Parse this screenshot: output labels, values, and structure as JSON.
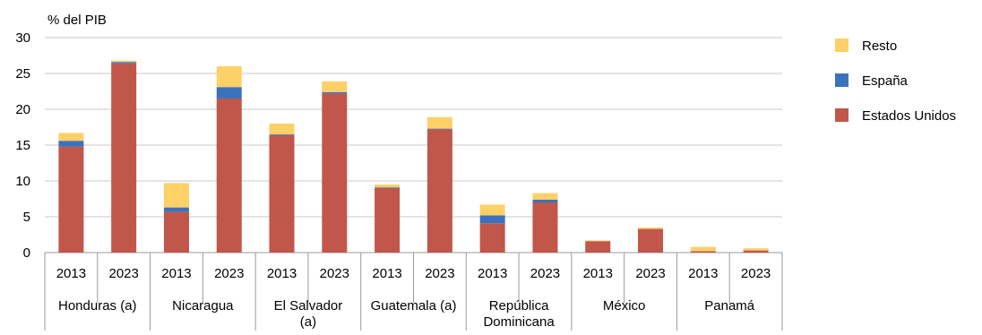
{
  "chart_data": {
    "type": "bar",
    "stacked": true,
    "ylabel": "% del PIB",
    "ylim": [
      0,
      30
    ],
    "yticks": [
      0,
      5,
      10,
      15,
      20,
      25,
      30
    ],
    "grid": true,
    "legend_position": "right",
    "groups": [
      {
        "label": "Honduras (a)",
        "label_lines": [
          "Honduras (a)"
        ]
      },
      {
        "label": "Nicaragua",
        "label_lines": [
          "Nicaragua"
        ]
      },
      {
        "label": "El Salvador (a)",
        "label_lines": [
          "El Salvador",
          "(a)"
        ]
      },
      {
        "label": "Guatemala (a)",
        "label_lines": [
          "Guatemala (a)"
        ]
      },
      {
        "label": "República Dominicana",
        "label_lines": [
          "República",
          "Dominicana"
        ]
      },
      {
        "label": "México",
        "label_lines": [
          "México"
        ]
      },
      {
        "label": "Panamá",
        "label_lines": [
          "Panamá"
        ]
      }
    ],
    "years": [
      "2013",
      "2023"
    ],
    "categories": [
      "Honduras (a) 2013",
      "Honduras (a) 2023",
      "Nicaragua 2013",
      "Nicaragua 2023",
      "El Salvador (a) 2013",
      "El Salvador (a) 2023",
      "Guatemala (a) 2013",
      "Guatemala (a) 2023",
      "República Dominicana 2013",
      "República Dominicana 2023",
      "México 2013",
      "México 2023",
      "Panamá 2013",
      "Panamá 2023"
    ],
    "series": [
      {
        "name": "Estados Unidos",
        "color": "#c0574a",
        "values": [
          14.8,
          26.4,
          5.7,
          21.5,
          16.4,
          22.2,
          9.0,
          17.2,
          4.1,
          7.0,
          1.6,
          3.3,
          0.2,
          0.3
        ]
      },
      {
        "name": "España",
        "color": "#3a72be",
        "values": [
          0.8,
          0.2,
          0.6,
          1.6,
          0.1,
          0.2,
          0.1,
          0.1,
          1.1,
          0.4,
          0.0,
          0.0,
          0.0,
          0.0
        ]
      },
      {
        "name": "Resto",
        "color": "#fdd068",
        "values": [
          1.1,
          0.2,
          3.4,
          2.9,
          1.5,
          1.5,
          0.4,
          1.6,
          1.5,
          0.9,
          0.1,
          0.2,
          0.6,
          0.3
        ]
      }
    ],
    "legend_order": [
      "Resto",
      "España",
      "Estados Unidos"
    ]
  }
}
